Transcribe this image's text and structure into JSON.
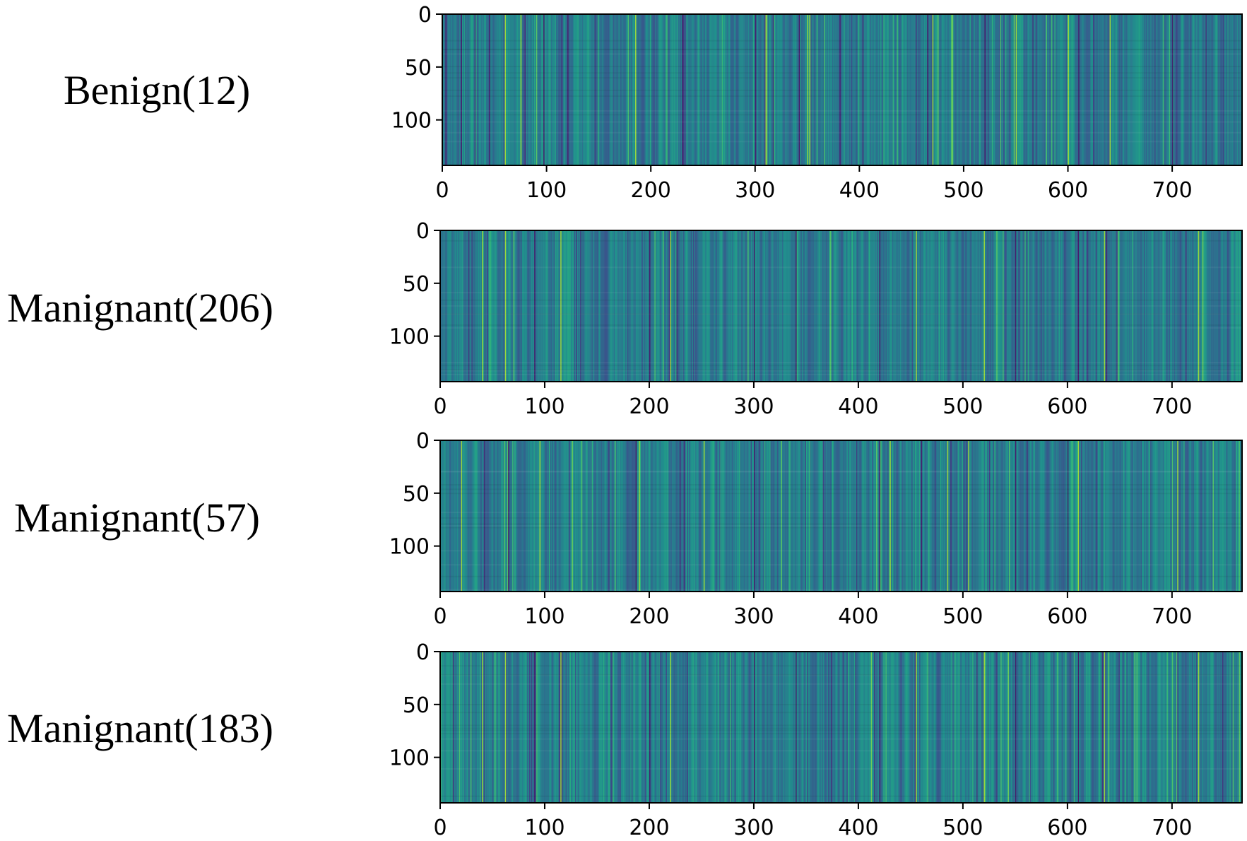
{
  "chart_data": [
    {
      "type": "heatmap",
      "label": "Benign(12)",
      "colormap": "viridis",
      "xlim": [
        0,
        767
      ],
      "ylim": [
        0,
        143
      ],
      "xticks": [
        "0",
        "100",
        "200",
        "300",
        "400",
        "500",
        "600",
        "700"
      ],
      "yticks": [
        "0",
        "50",
        "100"
      ],
      "dark_columns": [
        3,
        18,
        45,
        97,
        120,
        230,
        300,
        342,
        465,
        520,
        610,
        700
      ],
      "bright_columns": [
        60,
        75,
        185,
        310,
        350,
        352,
        470,
        550,
        600,
        640
      ]
    },
    {
      "type": "heatmap",
      "label": "Manignant(206)",
      "colormap": "viridis",
      "xlim": [
        0,
        767
      ],
      "ylim": [
        0,
        143
      ],
      "xticks": [
        "0",
        "100",
        "200",
        "300",
        "400",
        "500",
        "600",
        "700"
      ],
      "yticks": [
        "0",
        "50",
        "100"
      ],
      "dark_columns": [
        90,
        200,
        300,
        340,
        420,
        550,
        610
      ],
      "bright_columns": [
        40,
        62,
        115,
        220,
        455,
        520,
        635,
        725
      ]
    },
    {
      "type": "heatmap",
      "label": "Manignant(57)",
      "colormap": "viridis",
      "xlim": [
        0,
        767
      ],
      "ylim": [
        0,
        143
      ],
      "xticks": [
        "0",
        "100",
        "200",
        "300",
        "400",
        "500",
        "600",
        "700"
      ],
      "yticks": [
        "0",
        "50",
        "100"
      ],
      "dark_columns": [
        65,
        187,
        300,
        420,
        460,
        550,
        600
      ],
      "bright_columns": [
        20,
        95,
        190,
        252,
        430,
        485,
        505,
        610,
        705
      ]
    },
    {
      "type": "heatmap",
      "label": "Manignant(183)",
      "colormap": "viridis",
      "xlim": [
        0,
        767
      ],
      "ylim": [
        0,
        143
      ],
      "xticks": [
        "0",
        "100",
        "200",
        "300",
        "400",
        "500",
        "600",
        "700"
      ],
      "yticks": [
        "0",
        "50",
        "100"
      ],
      "dark_columns": [
        90,
        200,
        300,
        340,
        420,
        550,
        610
      ],
      "bright_columns": [
        40,
        62,
        115,
        220,
        455,
        520,
        635,
        725
      ]
    }
  ]
}
